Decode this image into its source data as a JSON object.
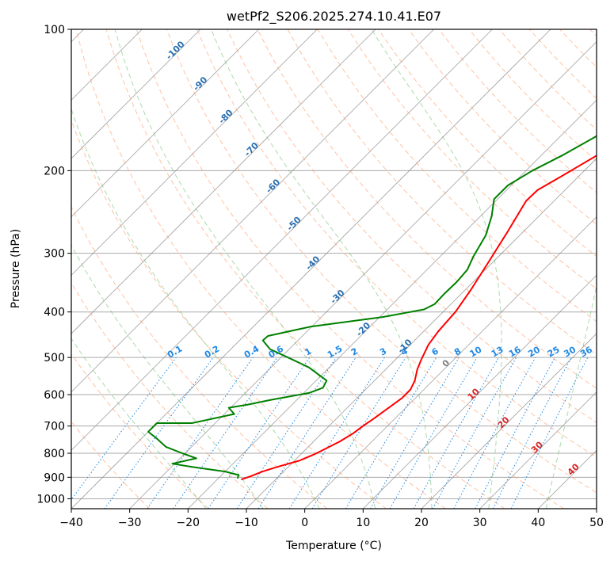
{
  "chart_data": {
    "type": "line",
    "title": "wetPf2_S206.2025.274.10.41.E07",
    "xlabel": "Temperature (°C)",
    "ylabel": "Pressure (hPa)",
    "xlim": [
      -40,
      50
    ],
    "ylim": [
      1050,
      100
    ],
    "y_scale": "log",
    "grid": true,
    "x_ticks": [
      "−40",
      "−30",
      "−20",
      "−10",
      "0",
      "10",
      "20",
      "30",
      "40",
      "50"
    ],
    "x_tick_values": [
      -40,
      -30,
      -20,
      -10,
      0,
      10,
      20,
      30,
      40,
      50
    ],
    "y_ticks": [
      "100",
      "200",
      "300",
      "400",
      "500",
      "600",
      "700",
      "800",
      "900",
      "1000"
    ],
    "y_tick_values": [
      100,
      200,
      300,
      400,
      500,
      600,
      700,
      800,
      900,
      1000
    ],
    "series": [
      {
        "color": "#ff0000",
        "points": [
          [
            -15.9,
            910
          ],
          [
            -14.8,
            895
          ],
          [
            -13.6,
            875
          ],
          [
            -11.8,
            855
          ],
          [
            -9.2,
            830
          ],
          [
            -7.7,
            805
          ],
          [
            -6.6,
            780
          ],
          [
            -5.5,
            755
          ],
          [
            -4.6,
            725
          ],
          [
            -4.2,
            700
          ],
          [
            -3.6,
            675
          ],
          [
            -3.1,
            650
          ],
          [
            -2.3,
            610
          ],
          [
            -2.3,
            585
          ],
          [
            -3.1,
            560
          ],
          [
            -4.6,
            530
          ],
          [
            -5.6,
            505
          ],
          [
            -6.9,
            470
          ],
          [
            -7.5,
            440
          ],
          [
            -7.9,
            400
          ],
          [
            -9.0,
            360
          ],
          [
            -10.9,
            310
          ],
          [
            -12.7,
            270
          ],
          [
            -14.8,
            232
          ],
          [
            -14.7,
            220
          ],
          [
            -12.9,
            205
          ],
          [
            -10.4,
            185
          ],
          [
            -7.3,
            165
          ],
          [
            -4.7,
            150
          ],
          [
            -2.1,
            136
          ],
          [
            2.6,
            120
          ],
          [
            6.6,
            108
          ],
          [
            9.7,
            100
          ]
        ]
      },
      {
        "color": "#008000",
        "points": [
          [
            -16.7,
            905
          ],
          [
            -17.1,
            890
          ],
          [
            -20.0,
            875
          ],
          [
            -26.6,
            855
          ],
          [
            -30.4,
            842
          ],
          [
            -27.2,
            820
          ],
          [
            -30.5,
            800
          ],
          [
            -34.4,
            775
          ],
          [
            -37.3,
            745
          ],
          [
            -40.0,
            720
          ],
          [
            -40.0,
            690
          ],
          [
            -34.0,
            690
          ],
          [
            -28.3,
            660
          ],
          [
            -30.3,
            640
          ],
          [
            -27.6,
            630
          ],
          [
            -24.3,
            615
          ],
          [
            -19.1,
            595
          ],
          [
            -17.6,
            580
          ],
          [
            -18.2,
            560
          ],
          [
            -23.5,
            525
          ],
          [
            -27.7,
            505
          ],
          [
            -33.3,
            480
          ],
          [
            -36.0,
            460
          ],
          [
            -35.9,
            450
          ],
          [
            -30.2,
            430
          ],
          [
            -19.4,
            410
          ],
          [
            -13.7,
            395
          ],
          [
            -12.8,
            385
          ],
          [
            -12.9,
            365
          ],
          [
            -12.8,
            345
          ],
          [
            -13.1,
            325
          ],
          [
            -14.3,
            305
          ],
          [
            -15.8,
            275
          ],
          [
            -18.1,
            250
          ],
          [
            -20.6,
            230
          ],
          [
            -20.6,
            215
          ],
          [
            -18.9,
            200
          ],
          [
            -16.3,
            185
          ],
          [
            -14.0,
            170
          ],
          [
            -12.0,
            155
          ],
          [
            -10.5,
            140
          ],
          [
            -8.3,
            125
          ],
          [
            -5.4,
            113
          ],
          [
            -3.0,
            104
          ],
          [
            -2.0,
            100
          ]
        ]
      }
    ],
    "dry_adiabat_labels": [
      "-100",
      "-90",
      "-80",
      "-70",
      "-60",
      "-50",
      "-40",
      "-30",
      "-20",
      "-10"
    ],
    "dry_adiabat_temps": [
      -100,
      -90,
      -80,
      -70,
      -60,
      -50,
      -40,
      -30,
      -20,
      -10
    ],
    "mixing_ratio_labels": [
      "0.1",
      "0.2",
      "0.4",
      "0.6",
      "1",
      "1.5",
      "2",
      "3",
      "4",
      "6",
      "8",
      "10",
      "13",
      "16",
      "20",
      "25",
      "30",
      "36"
    ],
    "mixing_ratio_values": [
      0.1,
      0.2,
      0.4,
      0.6,
      1,
      1.5,
      2,
      3,
      4,
      6,
      8,
      10,
      13,
      16,
      20,
      25,
      30,
      36
    ],
    "moist_adiabat_labels": [
      "0",
      "10",
      "20",
      "30",
      "40"
    ],
    "moist_adiabat_temps": [
      0,
      10,
      20,
      30,
      40
    ],
    "colors": {
      "dry_adiabat": "#ff9966",
      "moist_adiabat": "#66bb66",
      "mixing_ratio": "#1e88e5",
      "isotherm": "#808080",
      "isobar": "#aaaaaa",
      "dry_label": "#2a6fb0",
      "moist_label": "#d62728",
      "moist_label_zero": "#808080",
      "mixing_label": "#1e88e5"
    }
  }
}
